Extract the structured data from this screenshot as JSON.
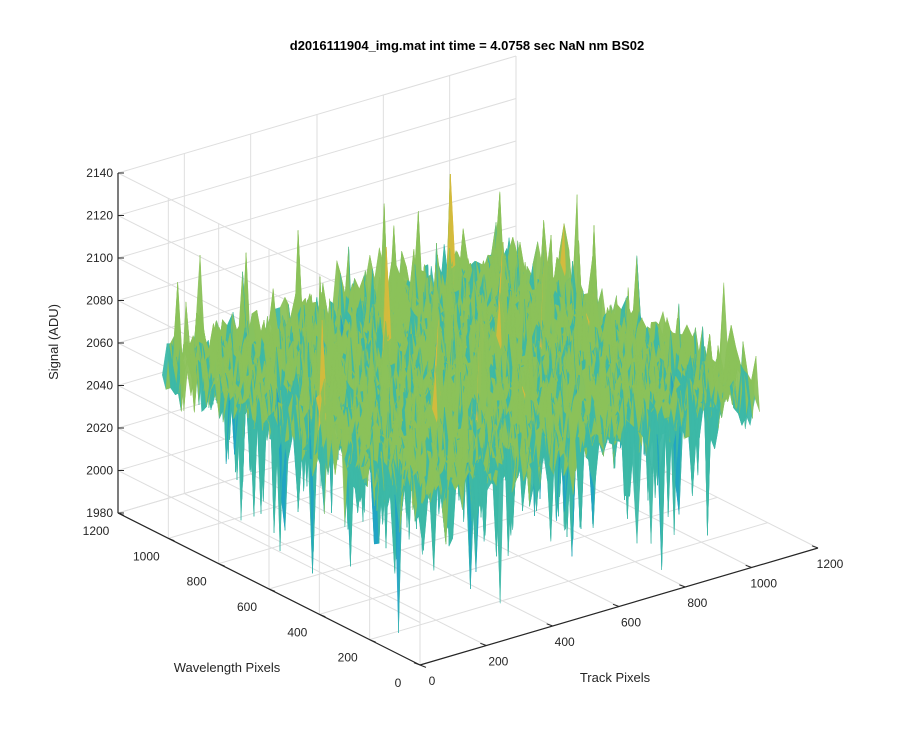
{
  "chart_data": {
    "type": "surface3d",
    "title": "d2016111904_img.mat int time = 4.0758 sec  NaN nm BS02",
    "xlabel": "Track Pixels",
    "ylabel": "Wavelength Pixels",
    "zlabel": "Signal (ADU)",
    "xlim": [
      0,
      1200
    ],
    "ylim": [
      0,
      1200
    ],
    "zlim": [
      1980,
      2140
    ],
    "x_ticks": [
      "0",
      "200",
      "400",
      "600",
      "800",
      "1000",
      "1200"
    ],
    "y_ticks": [
      "0",
      "200",
      "400",
      "600",
      "800",
      "1000",
      "1200"
    ],
    "z_ticks": [
      "1980",
      "2000",
      "2020",
      "2040",
      "2060",
      "2080",
      "2100",
      "2120",
      "2140"
    ],
    "grid": true,
    "surface_extent": {
      "x": [
        0,
        1024
      ],
      "y": [
        0,
        1024
      ]
    },
    "signal_mean": 2062,
    "signal_range": [
      1990,
      2140
    ],
    "colormap": [
      "#0f7fc4",
      "#20a3c4",
      "#3cb8a6",
      "#8bc25a",
      "#d6bb3c",
      "#f2c138"
    ]
  }
}
